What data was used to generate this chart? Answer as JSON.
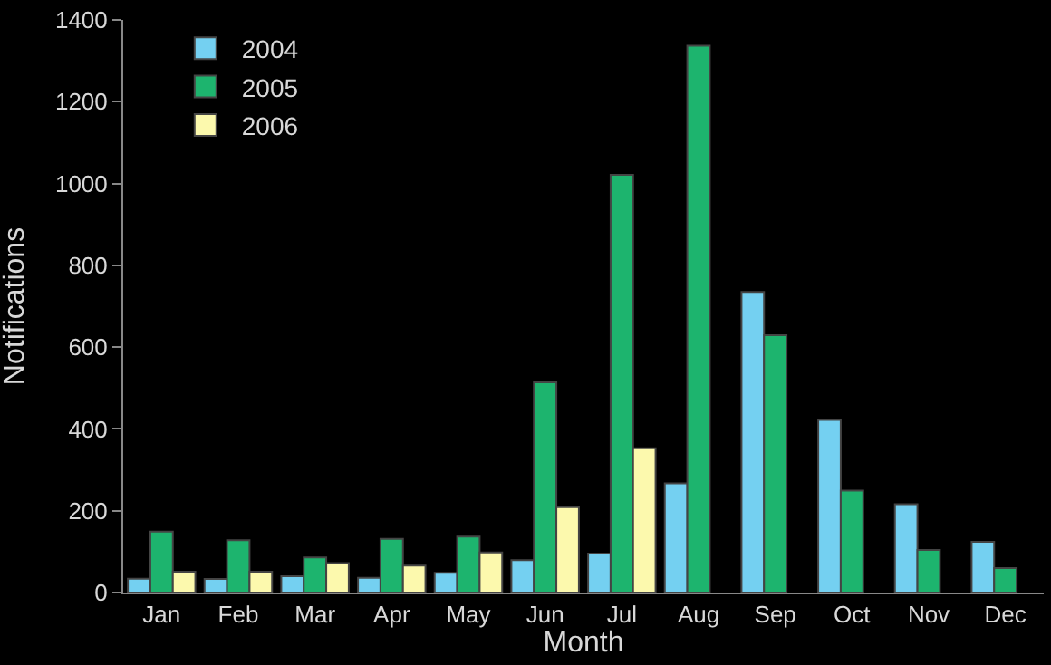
{
  "chart_data": {
    "type": "bar",
    "xlabel": "Month",
    "ylabel": "Notifications",
    "categories": [
      "Jan",
      "Feb",
      "Mar",
      "Apr",
      "May",
      "Jun",
      "Jul",
      "Aug",
      "Sep",
      "Oct",
      "Nov",
      "Dec"
    ],
    "series": [
      {
        "name": "2004",
        "color": "#74d0f1",
        "values": [
          34,
          33,
          40,
          36,
          48,
          79,
          95,
          267,
          735,
          422,
          216,
          124
        ]
      },
      {
        "name": "2005",
        "color": "#1db46e",
        "values": [
          149,
          128,
          86,
          131,
          137,
          514,
          1021,
          1337,
          629,
          249,
          104,
          60
        ]
      },
      {
        "name": "2006",
        "color": "#fcf9ad",
        "values": [
          51,
          51,
          72,
          66,
          98,
          209,
          353,
          null,
          null,
          null,
          null,
          null
        ]
      }
    ],
    "ylim": [
      0,
      1400
    ],
    "yticks": [
      0,
      200,
      400,
      600,
      800,
      1000,
      1200,
      1400
    ],
    "grid": false,
    "legend": "top left"
  }
}
